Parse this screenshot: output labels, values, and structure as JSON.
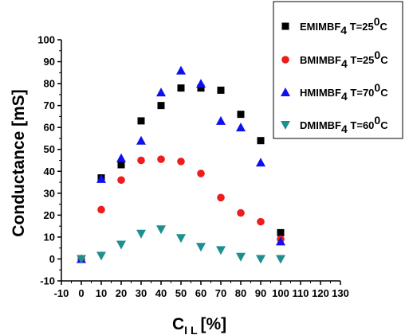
{
  "chart_data": {
    "type": "scatter",
    "xlabel": "C",
    "xlabel_sub": "I L",
    "xlabel_unit": "[%]",
    "ylabel": "Conductance [mS]",
    "xlim": [
      -10,
      130
    ],
    "ylim": [
      -10,
      100
    ],
    "xticks": [
      -10,
      0,
      10,
      20,
      30,
      40,
      50,
      60,
      70,
      80,
      90,
      100,
      110,
      120,
      130
    ],
    "yticks": [
      -10,
      0,
      10,
      20,
      30,
      40,
      50,
      60,
      70,
      80,
      90,
      100
    ],
    "grid": false,
    "legend_position": "top-right",
    "series": [
      {
        "name": "EMIMBF4 T=25°C",
        "label_parts": [
          "EMIMBF",
          "4",
          " T=25",
          "0",
          "C"
        ],
        "marker": "square",
        "color": "#000000",
        "x": [
          0,
          10,
          20,
          30,
          40,
          50,
          60,
          70,
          80,
          90,
          100
        ],
        "y": [
          0,
          37,
          43,
          63,
          70,
          78,
          78,
          77,
          66,
          54,
          12
        ]
      },
      {
        "name": "BMIMBF4 T=25°C",
        "label_parts": [
          "BMIMBF",
          "4",
          " T=25",
          "0",
          "C"
        ],
        "marker": "circle",
        "color": "#ee1c1c",
        "x": [
          0,
          10,
          20,
          30,
          40,
          50,
          60,
          70,
          80,
          90,
          100
        ],
        "y": [
          0,
          22.5,
          36,
          45,
          45.5,
          44.5,
          39,
          28,
          21,
          17,
          9
        ]
      },
      {
        "name": "HMIMBF4 T=70°C",
        "label_parts": [
          "HMIMBF",
          "4",
          " T=70",
          "0",
          "C"
        ],
        "marker": "triangle-up",
        "color": "#1010ee",
        "x": [
          0,
          10,
          20,
          30,
          40,
          50,
          60,
          70,
          80,
          90,
          100
        ],
        "y": [
          0,
          36.5,
          46,
          54,
          76,
          86,
          80,
          63,
          60,
          44,
          8
        ]
      },
      {
        "name": "DMIMBF4 T=60°C",
        "label_parts": [
          "DMIMBF",
          "4",
          " T=60",
          "0",
          "C"
        ],
        "marker": "triangle-down",
        "color": "#1e8f8f",
        "x": [
          0,
          10,
          20,
          30,
          40,
          50,
          60,
          70,
          80,
          90,
          100
        ],
        "y": [
          0,
          1.5,
          6.5,
          11.5,
          13.5,
          9.5,
          5.5,
          4,
          1,
          0,
          0
        ]
      }
    ]
  }
}
